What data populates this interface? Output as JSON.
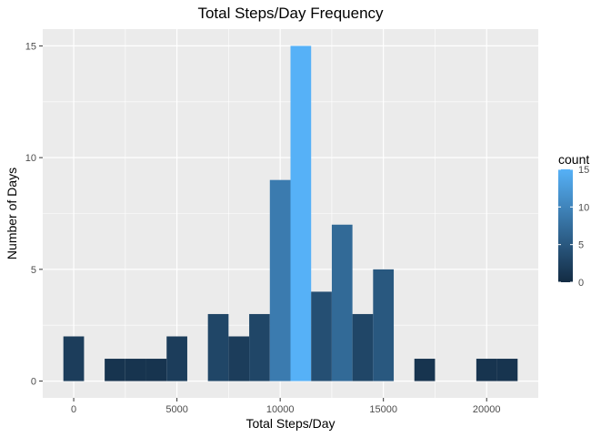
{
  "chart_data": {
    "type": "bar",
    "title": "Total Steps/Day Frequency",
    "xlabel": "Total Steps/Day",
    "ylabel": "Number of Days",
    "xlim": [
      -1500,
      22500
    ],
    "ylim": [
      -0.75,
      15.75
    ],
    "xticks": [
      0,
      5000,
      10000,
      15000,
      20000
    ],
    "xtick_labels": [
      "0",
      "5000",
      "10000",
      "15000",
      "20000"
    ],
    "yticks": [
      0,
      5,
      10,
      15
    ],
    "ytick_labels": [
      "0",
      "5",
      "10",
      "15"
    ],
    "bin_width": 1000,
    "bin_centers": [
      0,
      1000,
      2000,
      3000,
      4000,
      5000,
      6000,
      7000,
      8000,
      9000,
      10000,
      11000,
      12000,
      13000,
      14000,
      15000,
      16000,
      17000,
      18000,
      19000,
      20000,
      21000
    ],
    "values": [
      2,
      0,
      1,
      1,
      1,
      2,
      0,
      3,
      2,
      3,
      9,
      15,
      4,
      7,
      3,
      5,
      0,
      1,
      0,
      0,
      1,
      1
    ],
    "grid": true,
    "legend": {
      "title": "count",
      "position": "right",
      "range": [
        0,
        15
      ],
      "ticks": [
        0,
        5,
        10,
        15
      ],
      "tick_labels": [
        "0",
        "5",
        "10",
        "15"
      ],
      "color_low": "#132B43",
      "color_high": "#56B1F7"
    },
    "panel_background": "#EBEBEB",
    "gridline_color": "#FFFFFF"
  }
}
